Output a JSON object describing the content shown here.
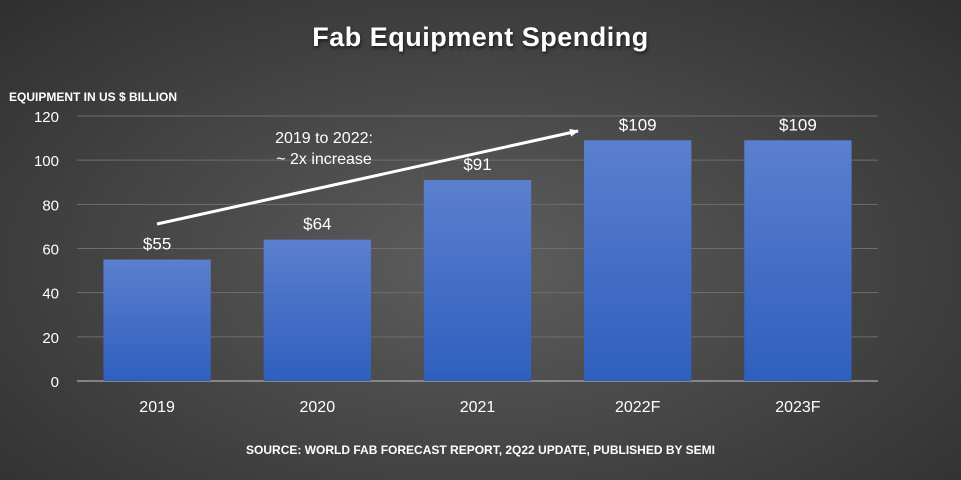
{
  "chart_data": {
    "type": "bar",
    "title": "Fab Equipment Spending",
    "ylabel": "EQUIPMENT IN US $ BILLION",
    "xlabel": "",
    "categories": [
      "2019",
      "2020",
      "2021",
      "2022F",
      "2023F"
    ],
    "values": [
      55,
      64,
      91,
      109,
      109
    ],
    "data_labels": [
      "$55",
      "$64",
      "$91",
      "$109",
      "$109"
    ],
    "ylim": [
      0,
      120
    ],
    "yticks": [
      0,
      20,
      40,
      60,
      80,
      100,
      120
    ],
    "grid": true,
    "annotation": "2019 to 2022:\n~ 2x increase",
    "source": "SOURCE: WORLD FAB FORECAST REPORT, 2Q22 UPDATE, PUBLISHED BY SEMI",
    "colors": {
      "bar_top": "#5b7fce",
      "bar_bottom": "#2f5fbe",
      "gridline": "#6e6e6e",
      "text": "#ffffff"
    }
  }
}
